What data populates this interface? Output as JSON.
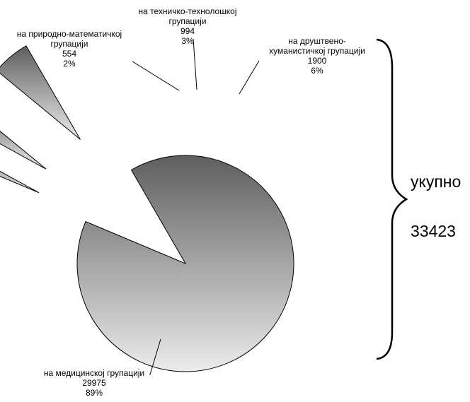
{
  "chart_data": {
    "type": "pie",
    "title": "",
    "slices": [
      {
        "label_lines": [
          "на медицинској групацији"
        ],
        "value": 29975,
        "percent": "89%",
        "color": "#8a8a8a"
      },
      {
        "label_lines": [
          "на природно-математичкој",
          "групацији"
        ],
        "value": 554,
        "percent": "2%",
        "color": "#8a8a8a"
      },
      {
        "label_lines": [
          "на техничко-технолошкој",
          "групацији"
        ],
        "value": 994,
        "percent": "3%",
        "color": "#8a8a8a"
      },
      {
        "label_lines": [
          "на друштвено-",
          "хуманистичкој групацији"
        ],
        "value": 1900,
        "percent": "6%",
        "color": "#8a8a8a"
      }
    ],
    "total": {
      "label": "укупно",
      "value": "33423"
    }
  }
}
